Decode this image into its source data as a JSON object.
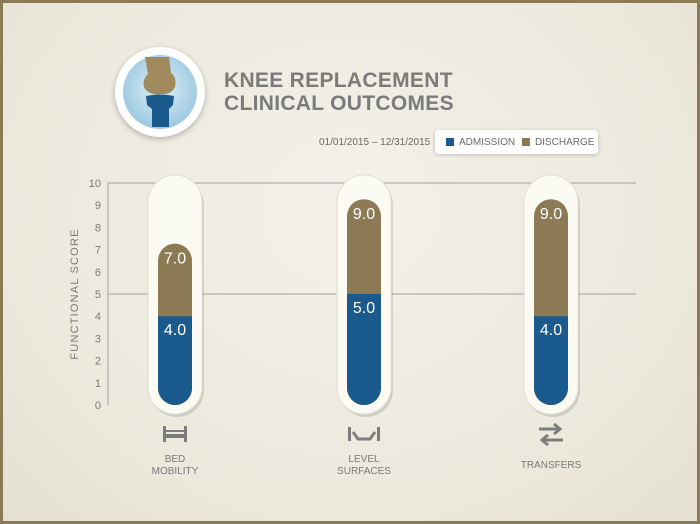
{
  "title_lines": [
    "KNEE REPLACEMENT",
    "CLINICAL OUTCOMES"
  ],
  "date_range": "01/01/2015 – 12/31/2015",
  "colors": {
    "admission": "#1a5a8c",
    "discharge": "#8c7a55",
    "grid": "#a0a0a0",
    "axis_text": "#7a7a7a",
    "tube": "#fbfaf3"
  },
  "icons": [
    "bed-icon",
    "level-surfaces-icon",
    "transfers-icon"
  ],
  "chart_data": {
    "type": "bar",
    "categories": [
      "BED\nMOBILITY",
      "LEVEL\nSURFACES",
      "TRANSFERS"
    ],
    "series": [
      {
        "name": "ADMISSION",
        "values": [
          4.0,
          5.0,
          4.0
        ]
      },
      {
        "name": "DISCHARGE",
        "values": [
          7.0,
          9.0,
          9.0
        ]
      }
    ],
    "value_labels": {
      "admission": [
        "4.0",
        "5.0",
        "4.0"
      ],
      "discharge": [
        "7.0",
        "9.0",
        "9.0"
      ]
    },
    "ylabel": "FUNCTIONAL SCORE",
    "ylim": [
      0,
      10
    ],
    "yticks": [
      0,
      1,
      2,
      3,
      4,
      5,
      6,
      7,
      8,
      9,
      10
    ],
    "grid": true,
    "legend_position": "top-right"
  }
}
